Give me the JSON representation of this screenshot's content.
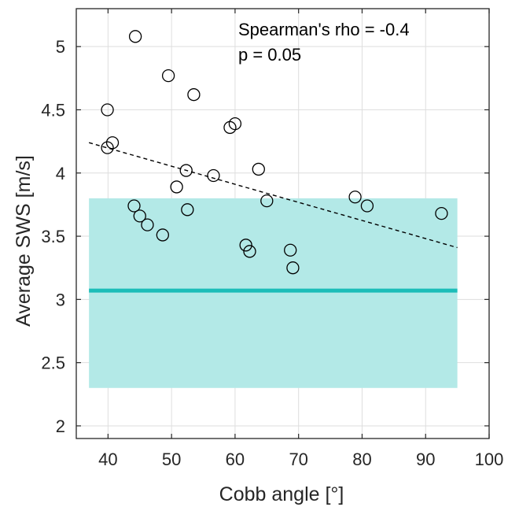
{
  "chart_data": {
    "type": "scatter",
    "title": "",
    "xlabel": "Cobb angle [°]",
    "ylabel": "Average SWS [m/s]",
    "xlim": [
      35,
      100
    ],
    "ylim": [
      1.9,
      5.3
    ],
    "xticks": [
      40,
      50,
      60,
      70,
      80,
      90,
      100
    ],
    "yticks": [
      2,
      2.5,
      3,
      3.5,
      4,
      4.5,
      5
    ],
    "ytick_labels": [
      "2",
      "2.5",
      "3",
      "3.5",
      "4",
      "4.5",
      "5"
    ],
    "grid": true,
    "points": [
      {
        "x": 44.3,
        "y": 5.08
      },
      {
        "x": 49.5,
        "y": 4.77
      },
      {
        "x": 53.5,
        "y": 4.62
      },
      {
        "x": 39.9,
        "y": 4.5
      },
      {
        "x": 60.0,
        "y": 4.39
      },
      {
        "x": 59.2,
        "y": 4.36
      },
      {
        "x": 40.7,
        "y": 4.24
      },
      {
        "x": 39.9,
        "y": 4.2
      },
      {
        "x": 63.7,
        "y": 4.03
      },
      {
        "x": 52.3,
        "y": 4.02
      },
      {
        "x": 56.6,
        "y": 3.98
      },
      {
        "x": 50.8,
        "y": 3.89
      },
      {
        "x": 78.9,
        "y": 3.81
      },
      {
        "x": 65.0,
        "y": 3.78
      },
      {
        "x": 80.8,
        "y": 3.74
      },
      {
        "x": 44.1,
        "y": 3.74
      },
      {
        "x": 52.5,
        "y": 3.71
      },
      {
        "x": 92.5,
        "y": 3.68
      },
      {
        "x": 45.0,
        "y": 3.66
      },
      {
        "x": 46.2,
        "y": 3.59
      },
      {
        "x": 48.6,
        "y": 3.51
      },
      {
        "x": 61.7,
        "y": 3.43
      },
      {
        "x": 62.3,
        "y": 3.38
      },
      {
        "x": 68.7,
        "y": 3.39
      },
      {
        "x": 69.1,
        "y": 3.25
      }
    ],
    "trend_line": {
      "x": [
        37,
        95
      ],
      "y": [
        4.24,
        3.41
      ],
      "style": "dashed",
      "color": "#000000"
    },
    "reference_band": {
      "x": [
        37,
        95
      ],
      "y": [
        2.3,
        3.8
      ],
      "color": "#b3e9e7"
    },
    "reference_line": {
      "x": [
        37,
        95
      ],
      "y": 3.07,
      "color": "#1cbdb8"
    },
    "annotations": [
      "Spearman's rho = -0.4",
      "p = 0.05"
    ]
  }
}
